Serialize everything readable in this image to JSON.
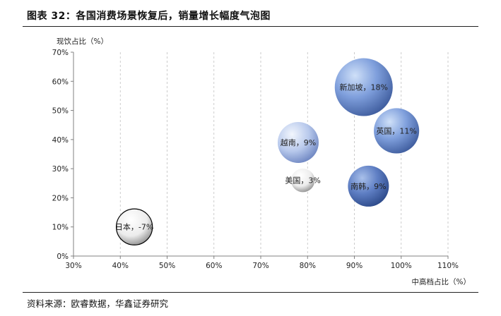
{
  "figure": {
    "title": "图表 32：各国消费场景恢复后，销量增长幅度气泡图",
    "source": "资料来源：欧睿数据，华鑫证券研究"
  },
  "colors": {
    "blue_light": "#d2def3",
    "blue_mid": "#7b9ad8",
    "blue_dark": "#4a67a8",
    "white_light": "#ffffff",
    "white_dark": "#9a9a9a",
    "grid": "#bfbfbf",
    "axis": "#808080"
  },
  "chart_data": {
    "type": "scatter",
    "subtype": "bubble",
    "xlabel": "中高档占比（%）",
    "ylabel": "现饮占比（%）",
    "xlim": [
      30,
      110
    ],
    "ylim": [
      0,
      70
    ],
    "xticks": [
      "30%",
      "40%",
      "50%",
      "60%",
      "70%",
      "80%",
      "90%",
      "100%",
      "110%"
    ],
    "yticks": [
      "0%",
      "10%",
      "20%",
      "30%",
      "40%",
      "50%",
      "60%",
      "70%"
    ],
    "grid": {
      "x": true,
      "y": false
    },
    "points": [
      {
        "label": "日本，-7%",
        "x": 43,
        "y": 10,
        "growth": -7,
        "style": "white"
      },
      {
        "label": "美国，3%",
        "x": 79,
        "y": 26,
        "growth": 3,
        "style": "white"
      },
      {
        "label": "越南，9%",
        "x": 78,
        "y": 39,
        "growth": 9,
        "style": "blue_light"
      },
      {
        "label": "南韩，9%",
        "x": 93,
        "y": 24,
        "growth": 9,
        "style": "blue_dark"
      },
      {
        "label": "英国，11%",
        "x": 99,
        "y": 43,
        "growth": 11,
        "style": "blue_mid"
      },
      {
        "label": "新加坡，18%",
        "x": 92,
        "y": 58,
        "growth": 18,
        "style": "blue_mid"
      }
    ]
  }
}
